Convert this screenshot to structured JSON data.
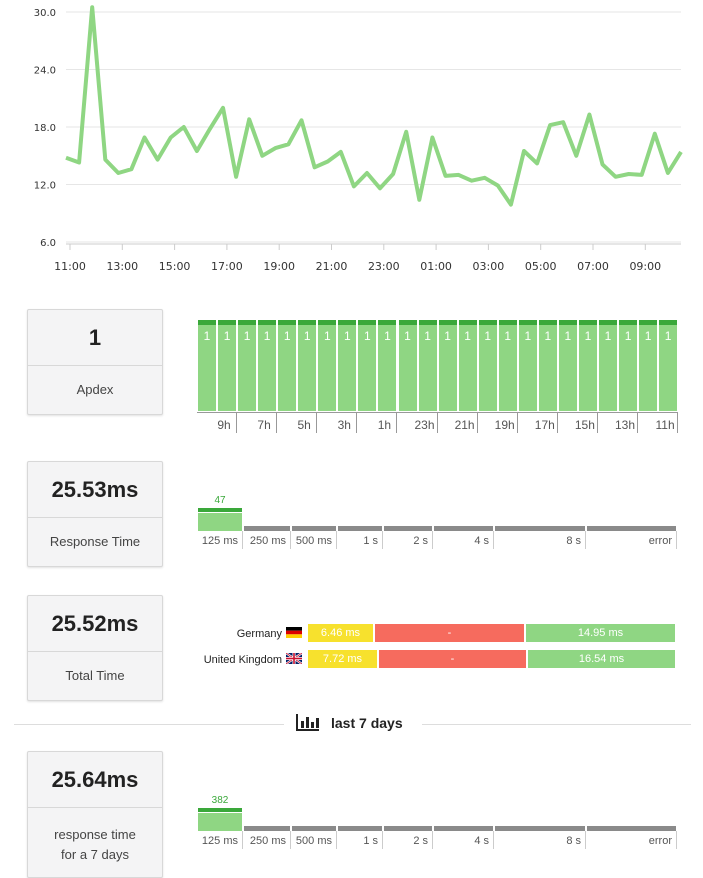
{
  "chart_data": {
    "type": "line",
    "x_ticks": [
      "11:00",
      "13:00",
      "15:00",
      "17:00",
      "19:00",
      "21:00",
      "23:00",
      "01:00",
      "03:00",
      "05:00",
      "07:00",
      "09:00"
    ],
    "y_ticks": [
      "30.0",
      "24.0",
      "18.0",
      "12.0",
      "6.0"
    ],
    "ylim": [
      6,
      30
    ],
    "color": "#8fd683",
    "values": [
      14.8,
      14.3,
      30.5,
      14.6,
      13.2,
      13.6,
      16.9,
      14.6,
      16.9,
      18.0,
      15.5,
      17.8,
      20.0,
      12.8,
      18.8,
      15.0,
      15.8,
      16.2,
      18.7,
      13.8,
      14.4,
      15.4,
      11.8,
      13.2,
      11.6,
      13.1,
      17.5,
      10.4,
      16.9,
      12.9,
      13.0,
      12.4,
      12.7,
      11.9,
      9.9,
      15.5,
      14.2,
      18.2,
      18.5,
      15.0,
      19.3,
      14.1,
      12.8,
      13.1,
      13.0,
      17.3,
      13.2,
      15.4
    ]
  },
  "apdex": {
    "value": "1",
    "label": "Apdex",
    "bar_values": [
      "1",
      "1",
      "1",
      "1",
      "1",
      "1",
      "1",
      "1",
      "1",
      "1",
      "1",
      "1",
      "1",
      "1",
      "1",
      "1",
      "1",
      "1",
      "1",
      "1",
      "1",
      "1",
      "1",
      "1"
    ],
    "ticks": [
      "9h",
      "7h",
      "5h",
      "3h",
      "1h",
      "23h",
      "21h",
      "19h",
      "17h",
      "15h",
      "13h",
      "11h"
    ]
  },
  "response_time": {
    "value": "25.53ms",
    "label": "Response Time",
    "count": "47",
    "buckets": [
      "125 ms",
      "250 ms",
      "500 ms",
      "1 s",
      "2 s",
      "4 s",
      "8 s",
      "error"
    ]
  },
  "total_time": {
    "value": "25.52ms",
    "label": "Total Time",
    "countries": [
      {
        "name": "Germany",
        "a": "6.46 ms",
        "b": "-",
        "c": "14.95 ms"
      },
      {
        "name": "United Kingdom",
        "a": "7.72 ms",
        "b": "-",
        "c": "16.54 ms"
      }
    ]
  },
  "section": {
    "title": "last 7 days",
    "icon": "bar-chart-icon"
  },
  "week": {
    "value": "25.64ms",
    "label_line1": "response time",
    "label_line2": "for a 7 days",
    "count": "382",
    "buckets": [
      "125 ms",
      "250 ms",
      "500 ms",
      "1 s",
      "2 s",
      "4 s",
      "8 s",
      "error"
    ]
  },
  "colors": {
    "green": "#8fd683",
    "dark_green": "#3aa83a",
    "yellow": "#f7e12d",
    "red": "#f66b5e"
  }
}
